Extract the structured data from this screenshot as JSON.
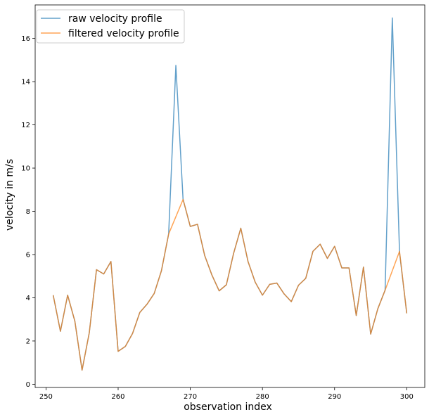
{
  "chart_data": {
    "type": "line",
    "title": "",
    "xlabel": "observation index",
    "ylabel": "velocity in m/s",
    "xlim": [
      248.5,
      302.5
    ],
    "ylim": [
      -0.15,
      17.55
    ],
    "xticks": [
      250,
      260,
      270,
      280,
      290,
      300
    ],
    "yticks": [
      0,
      2,
      4,
      6,
      8,
      10,
      12,
      14,
      16
    ],
    "grid": false,
    "legend_position": "top-left",
    "x": [
      251,
      252,
      253,
      254,
      255,
      256,
      257,
      258,
      259,
      260,
      261,
      262,
      263,
      264,
      265,
      266,
      267,
      268,
      269,
      270,
      271,
      272,
      273,
      274,
      275,
      276,
      277,
      278,
      279,
      280,
      281,
      282,
      283,
      284,
      285,
      286,
      287,
      288,
      289,
      290,
      291,
      292,
      293,
      294,
      295,
      296,
      297,
      298,
      299,
      300
    ],
    "series": [
      {
        "name": "raw velocity profile",
        "color": "#1f77b4",
        "values": [
          4.12,
          2.45,
          4.12,
          2.92,
          0.65,
          2.38,
          5.3,
          5.1,
          5.68,
          1.52,
          1.75,
          2.35,
          3.32,
          3.7,
          4.2,
          5.25,
          6.95,
          14.75,
          8.55,
          7.3,
          7.4,
          5.95,
          5.05,
          4.32,
          4.6,
          6.05,
          7.22,
          5.68,
          4.72,
          4.12,
          4.62,
          4.68,
          4.18,
          3.82,
          4.58,
          4.9,
          6.15,
          6.48,
          5.82,
          6.38,
          5.38,
          5.38,
          3.18,
          5.42,
          2.32,
          3.5,
          4.35,
          16.95,
          6.1,
          3.28
        ]
      },
      {
        "name": "filtered velocity profile",
        "color": "#ff7f0e",
        "values": [
          4.12,
          2.45,
          4.12,
          2.92,
          0.65,
          2.38,
          5.3,
          5.1,
          5.68,
          1.52,
          1.75,
          2.35,
          3.32,
          3.7,
          4.2,
          5.25,
          6.95,
          7.75,
          8.55,
          7.3,
          7.4,
          5.95,
          5.05,
          4.32,
          4.6,
          6.05,
          7.22,
          5.68,
          4.72,
          4.12,
          4.62,
          4.68,
          4.18,
          3.82,
          4.58,
          4.9,
          6.15,
          6.48,
          5.82,
          6.38,
          5.38,
          5.38,
          3.18,
          5.42,
          2.32,
          3.5,
          4.35,
          5.25,
          6.15,
          3.28
        ]
      }
    ]
  }
}
